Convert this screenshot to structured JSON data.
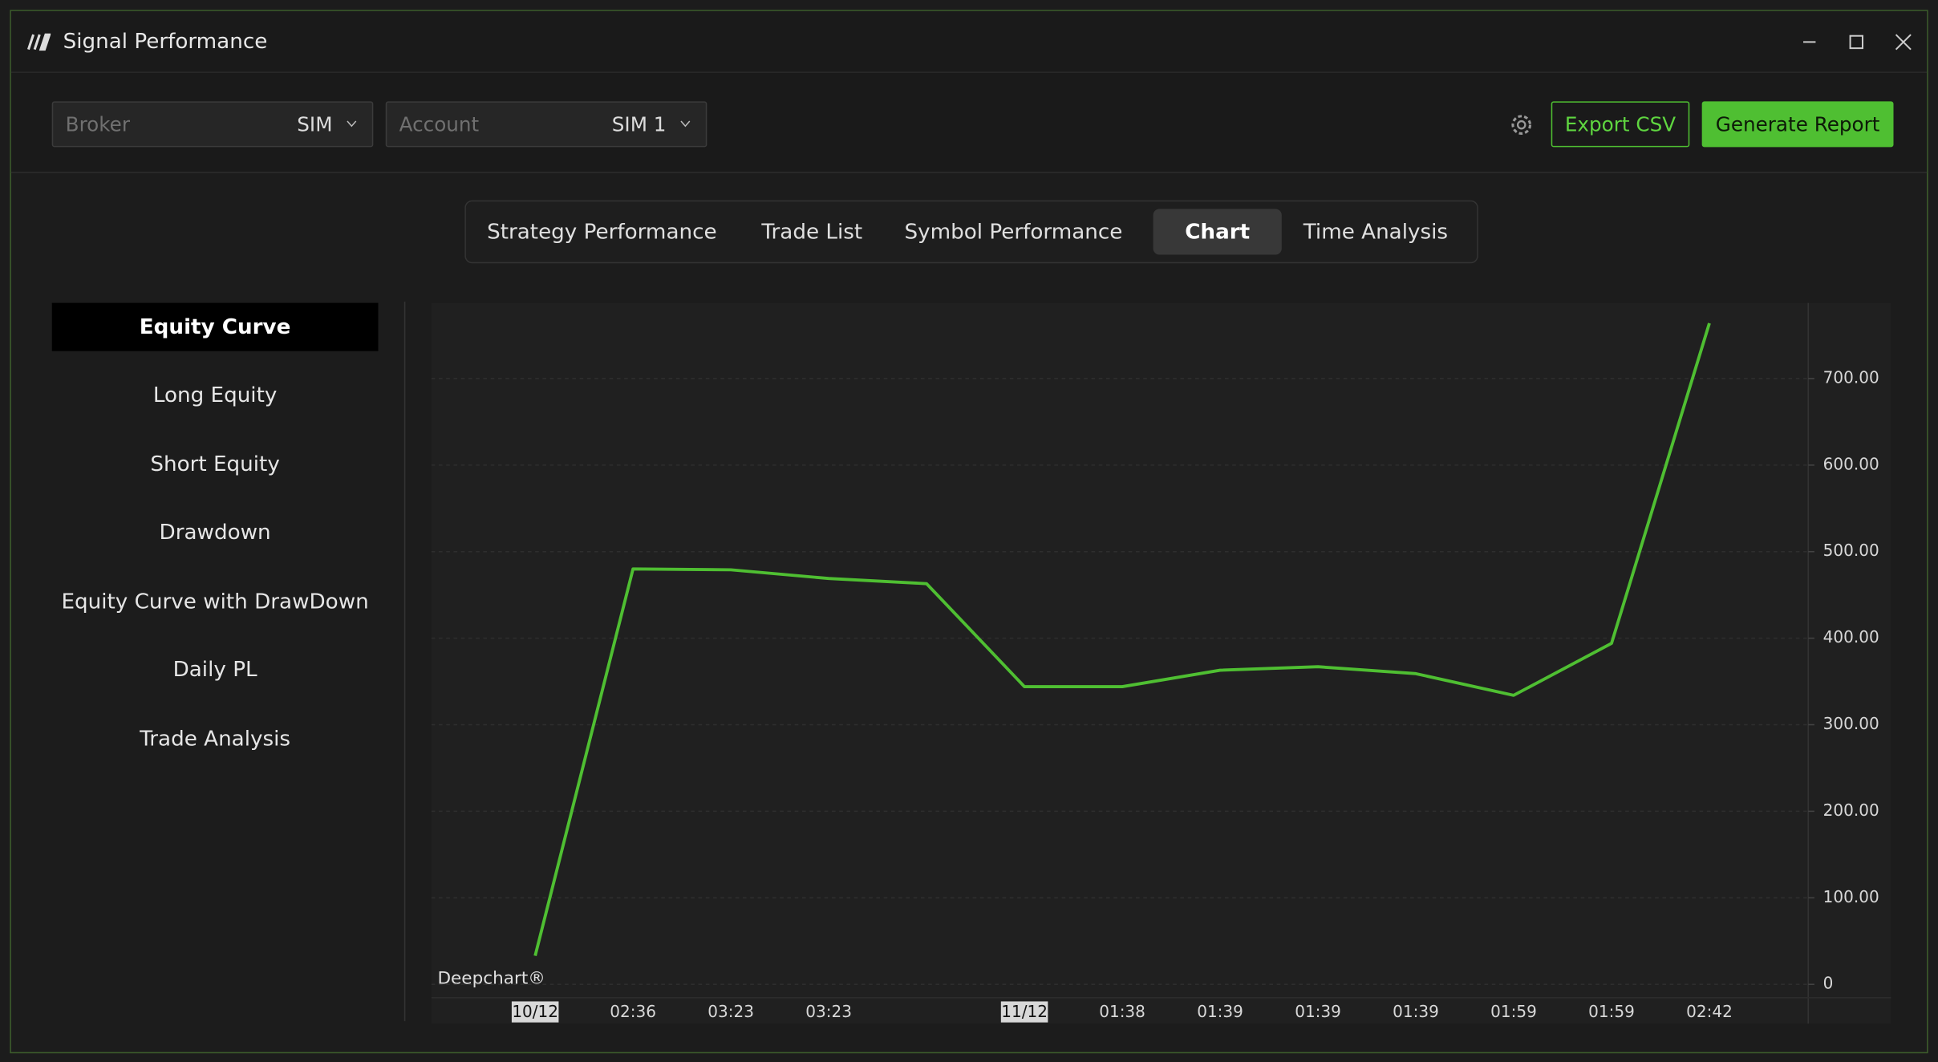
{
  "window": {
    "title": "Signal Performance"
  },
  "toolbar": {
    "broker_label": "Broker",
    "broker_value": "SIM",
    "account_label": "Account",
    "account_value": "SIM 1",
    "export_button": "Export CSV",
    "report_button": "Generate Report"
  },
  "tabs": [
    "Strategy Performance",
    "Trade List",
    "Symbol Performance",
    "Chart",
    "Time Analysis"
  ],
  "active_tab": "Chart",
  "sidebar": [
    "Equity Curve",
    "Long Equity",
    "Short Equity",
    "Drawdown",
    "Equity Curve with DrawDown",
    "Daily PL",
    "Trade Analysis"
  ],
  "active_sidebar": "Equity Curve",
  "chart_data": {
    "type": "line",
    "watermark": "Deepchart®",
    "categories": [
      "10/12",
      "02:36",
      "03:23",
      "03:23",
      null,
      "11/12",
      "01:38",
      "01:39",
      "01:39",
      "01:39",
      "01:59",
      "01:59",
      "02:42"
    ],
    "series": [
      {
        "name": "Equity Curve",
        "color": "#4fbf32",
        "values": [
          33,
          480,
          479,
          469,
          463,
          344,
          344,
          363,
          367,
          359,
          334,
          394,
          764
        ]
      }
    ],
    "ylim": [
      -14,
      786
    ],
    "yticks": [
      0,
      {
        "value": 100,
        "label": "100.00"
      },
      {
        "value": 200,
        "label": "200.00"
      },
      {
        "value": 300,
        "label": "300.00"
      },
      {
        "value": 400,
        "label": "400.00"
      },
      {
        "value": 500,
        "label": "500.00"
      },
      {
        "value": 600,
        "label": "600.00"
      },
      {
        "value": 700,
        "label": "700.00"
      }
    ],
    "grid": true
  }
}
